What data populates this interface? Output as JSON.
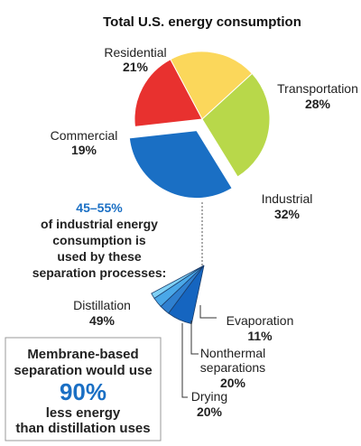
{
  "chart_data": [
    {
      "type": "pie",
      "title": "Total U.S. energy consumption",
      "slices": [
        {
          "label": "Residential",
          "value": 21,
          "display": "21%",
          "color": "#fbd75b"
        },
        {
          "label": "Transportation",
          "value": 28,
          "display": "28%",
          "color": "#b8d84a"
        },
        {
          "label": "Industrial",
          "value": 32,
          "display": "32%",
          "color": "#1a6fc4"
        },
        {
          "label": "Commercial",
          "value": 19,
          "display": "19%",
          "color": "#e8312f"
        }
      ]
    },
    {
      "type": "pie",
      "subset_of": "Industrial",
      "slices": [
        {
          "label": "Distillation",
          "value": 49,
          "display": "49%",
          "color": "#1565c0"
        },
        {
          "label": "Drying",
          "value": 20,
          "display": "20%",
          "color": "#2f80d0"
        },
        {
          "label": "Nonthermal separations",
          "value": 20,
          "display": "20%",
          "color": "#4aa8e8"
        },
        {
          "label": "Evaporation",
          "value": 11,
          "display": "11%",
          "color": "#7fd0f5"
        }
      ]
    }
  ],
  "labels": {
    "title": "Total U.S. energy consumption",
    "residential": "Residential",
    "residential_pct": "21%",
    "transportation": "Transportation",
    "transportation_pct": "28%",
    "commercial": "Commercial",
    "commercial_pct": "19%",
    "industrial": "Industrial",
    "industrial_pct": "32%",
    "distillation": "Distillation",
    "distillation_pct": "49%",
    "evaporation": "Evaporation",
    "evaporation_pct": "11%",
    "nonthermal_1": "Nonthermal",
    "nonthermal_2": "separations",
    "nonthermal_pct": "20%",
    "drying": "Drying",
    "drying_pct": "20%"
  },
  "callout": {
    "range": "45–55%",
    "line1": "of industrial energy",
    "line2": "consumption is",
    "line3": "used by these",
    "line4": "separation processes:"
  },
  "box": {
    "line1": "Membrane-based",
    "line2": "separation would use",
    "big": "90%",
    "line3": "less energy",
    "line4": "than distillation uses"
  }
}
